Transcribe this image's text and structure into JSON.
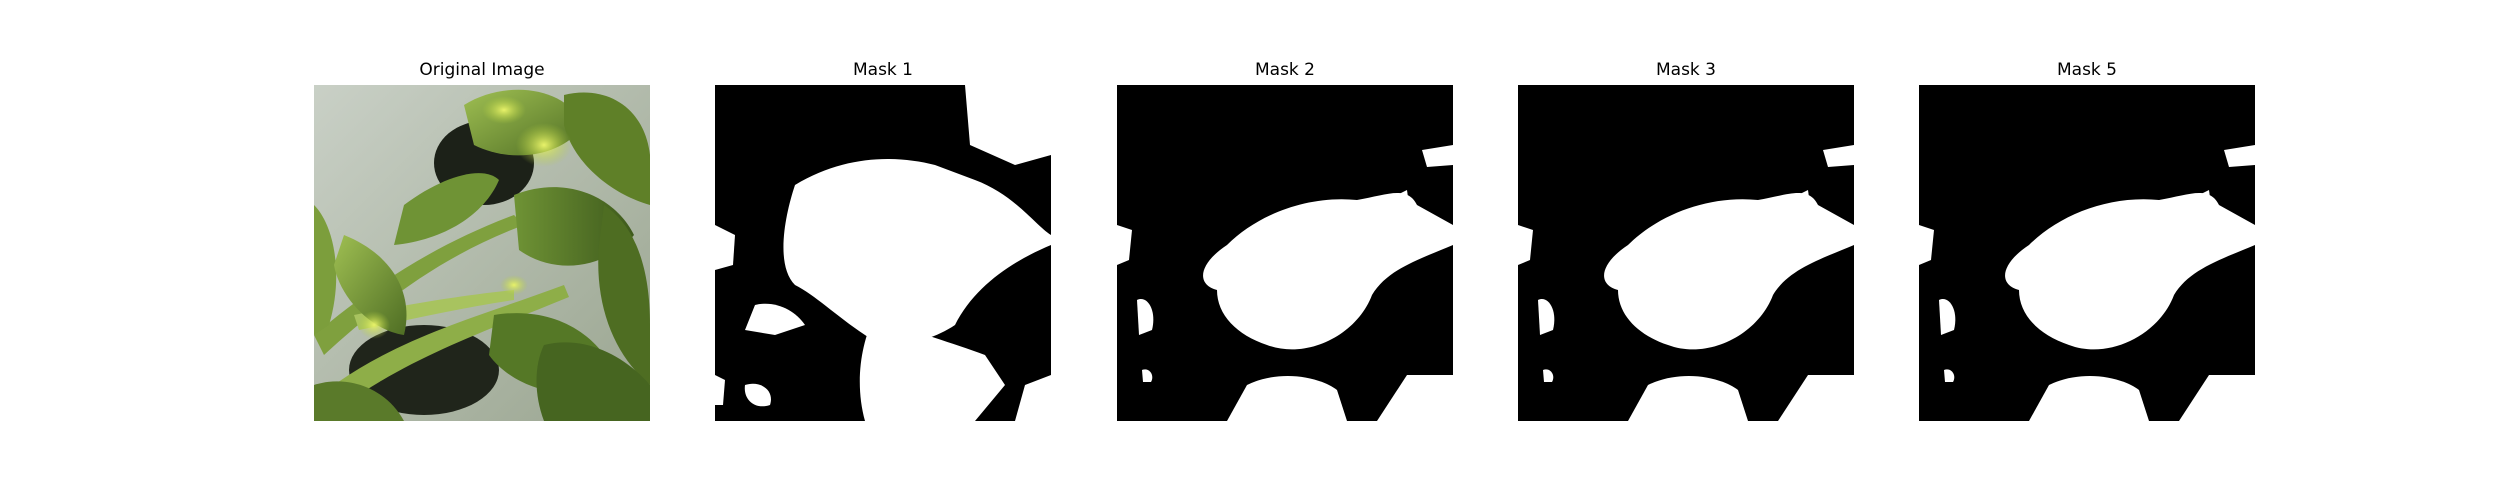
{
  "figure": {
    "panels": [
      {
        "title": "Original Image",
        "kind": "photo",
        "subject": "green-leafy-plant"
      },
      {
        "title": "Mask 1",
        "kind": "binary-mask",
        "foreground": "#ffffff",
        "background": "#000000"
      },
      {
        "title": "Mask 2",
        "kind": "binary-mask",
        "foreground": "#ffffff",
        "background": "#000000"
      },
      {
        "title": "Mask 3",
        "kind": "binary-mask",
        "foreground": "#ffffff",
        "background": "#000000"
      },
      {
        "title": "Mask 5",
        "kind": "binary-mask",
        "foreground": "#ffffff",
        "background": "#000000"
      }
    ]
  }
}
